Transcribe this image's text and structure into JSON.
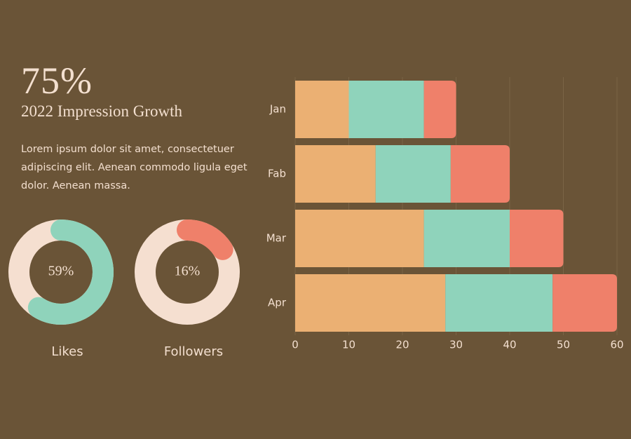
{
  "header": {
    "headline": "75%",
    "subtitle": "2022 Impression Growth",
    "body": "Lorem ipsum dolor sit amet, consectetuer adipiscing elit. Aenean commodo ligula eget dolor. Aenean massa."
  },
  "chart_data": [
    {
      "type": "bar",
      "orientation": "horizontal",
      "stacked": true,
      "categories": [
        "Jan",
        "Fab",
        "Mar",
        "Apr"
      ],
      "series": [
        {
          "color": "#ebb073",
          "values": [
            10,
            15,
            24,
            28
          ]
        },
        {
          "color": "#8fd3bb",
          "values": [
            14,
            14,
            16,
            20
          ]
        },
        {
          "color": "#ef806a",
          "values": [
            6,
            11,
            10,
            12
          ]
        }
      ],
      "xlim": [
        0,
        60
      ],
      "xticks": [
        0,
        10,
        20,
        30,
        40,
        50,
        60
      ],
      "grid": true
    },
    {
      "type": "donut",
      "title": "Likes",
      "values": [
        59
      ],
      "value_labels": [
        "59%"
      ],
      "color": "#8fd3bb",
      "track_color": "#f5dfd0"
    },
    {
      "type": "donut",
      "title": "Followers",
      "values": [
        16
      ],
      "value_labels": [
        "16%"
      ],
      "color": "#ef806a",
      "track_color": "#f5dfd0"
    }
  ]
}
